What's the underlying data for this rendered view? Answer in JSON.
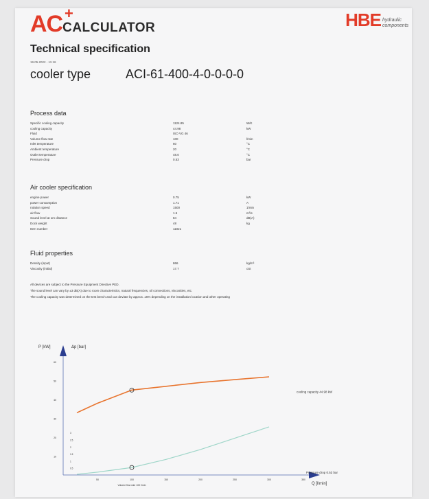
{
  "header": {
    "logo_ac": "AC",
    "logo_plus": "+",
    "logo_calc": "CALCULATOR",
    "brand": "HBE",
    "brand_sub": "hydraulic components"
  },
  "title": "Technical specification",
  "date": "19.05.2022 - 11:16",
  "cooler": {
    "label": "cooler type",
    "value": "ACI-61-400-4-0-0-0-0"
  },
  "process_data": {
    "heading": "Process data",
    "rows": [
      {
        "label": "Specific cooling capacity",
        "value": "1124.85",
        "unit": "W/K"
      },
      {
        "label": "cooling capacity",
        "value": "44.98",
        "unit": "kW"
      },
      {
        "label": "Fluid",
        "value": "ISO VG 46",
        "unit": ""
      },
      {
        "label": "Volume flow rate",
        "value": "100",
        "unit": "l/min"
      },
      {
        "label": "Inlet temperature",
        "value": "60",
        "unit": "°C"
      },
      {
        "label": "Ambient temperature",
        "value": "20",
        "unit": "°C"
      },
      {
        "label": "Outlet temperature",
        "value": "48.0",
        "unit": "°C"
      },
      {
        "label": "Pressure drop",
        "value": "0.53",
        "unit": "bar"
      }
    ]
  },
  "air_cooler": {
    "heading": "Air cooler specification",
    "rows": [
      {
        "label": "engine power",
        "value": "0.75",
        "unit": "kW"
      },
      {
        "label": "power consumption",
        "value": "1.71",
        "unit": "A"
      },
      {
        "label": "rotation speed",
        "value": "1500",
        "unit": "1/min"
      },
      {
        "label": "air flow",
        "value": "1.5",
        "unit": "m³/s"
      },
      {
        "label": "Sound level at 1m distance",
        "value": "84",
        "unit": "dB(A)"
      },
      {
        "label": "Dock weight",
        "value": "48",
        "unit": "kg"
      },
      {
        "label": "Item number",
        "value": "11021",
        "unit": ""
      }
    ]
  },
  "fluid": {
    "heading": "Fluid properties",
    "rows": [
      {
        "label": "Density (input)",
        "value": "866",
        "unit": "kg/m³"
      },
      {
        "label": "Viscosity (initial)",
        "value": "17.7",
        "unit": "cSt"
      }
    ]
  },
  "notes": [
    "All devices are subject to the Pressure Equipment Directive PED.",
    "The sound level can vary by ±3 dB(A) due to room characteristics, natural frequencies, oil connections, viscosities, etc.",
    "The cooling capacity was determined on the test bench and can deviate by approx. ±5% depending on the installation location and other operating"
  ],
  "chart_data": {
    "type": "line",
    "xlabel": "Q [l/min]",
    "ylabel_left": "P [kW]",
    "ylabel_right": "Δp [bar]",
    "x_marker_label": "Volume flow rate 100 l/min",
    "x": [
      20,
      50,
      100,
      150,
      200,
      250,
      300
    ],
    "series": [
      {
        "name": "cooling capacity 44.98 kW",
        "color": "#e8742e",
        "values": [
          33,
          38,
          44.98,
          47,
          49,
          50.5,
          52
        ]
      },
      {
        "name": "Pressure drop 0.53 bar",
        "color": "#9fd6c9",
        "values": [
          0.05,
          0.2,
          0.53,
          1.1,
          1.8,
          2.6,
          3.4
        ]
      }
    ],
    "ylim_left": [
      0,
      60
    ],
    "ylim_right": [
      0,
      8
    ],
    "xlim": [
      0,
      350
    ],
    "operating_point_x": 100,
    "y_ticks_left": [
      0,
      10,
      20,
      30,
      40,
      50,
      60
    ],
    "x_ticks": [
      0,
      50,
      100,
      150,
      200,
      250,
      300,
      350
    ],
    "y_ticks_right": [
      "0.5",
      "1",
      "1.5",
      "2",
      "2.5",
      "3"
    ]
  }
}
